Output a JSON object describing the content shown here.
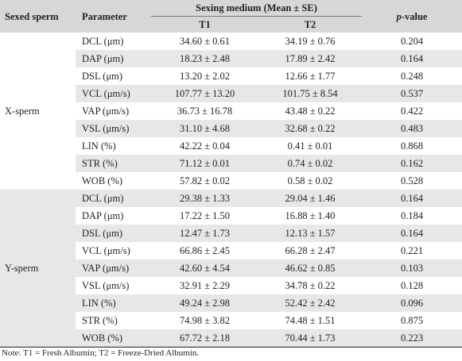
{
  "table": {
    "header": {
      "group_col": "Sexed sperm",
      "param_col": "Parameter",
      "medium_col": "Sexing medium (Mean ± SE)",
      "t1": "T1",
      "t2": "T2",
      "p_italic": "p",
      "p_rest": "-value"
    },
    "groups": [
      {
        "label": "X-sperm",
        "rows": [
          {
            "param": "DCL (μm)",
            "t1": "34.60 ± 0.61",
            "t2": "34.19 ± 0.76",
            "p": "0.204"
          },
          {
            "param": "DAP (μm)",
            "t1": "18.23 ± 2.48",
            "t2": "17.89 ± 2.42",
            "p": "0.164"
          },
          {
            "param": "DSL (μm)",
            "t1": "13.20 ± 2.02",
            "t2": "12.66 ± 1.77",
            "p": "0.248"
          },
          {
            "param": "VCL (μm/s)",
            "t1": "107.77 ± 13.20",
            "t2": "101.75 ± 8.54",
            "p": "0.537"
          },
          {
            "param": "VAP (μm/s)",
            "t1": "36.73 ± 16.78",
            "t2": "43.48 ± 0.22",
            "p": "0.422"
          },
          {
            "param": "VSL (μm/s)",
            "t1": "31.10 ± 4.68",
            "t2": "32.68 ± 0.22",
            "p": "0.483"
          },
          {
            "param": "LIN (%)",
            "t1": "42.22 ± 0.04",
            "t2": "0.41 ± 0.01",
            "p": "0.868"
          },
          {
            "param": "STR (%)",
            "t1": "71.12 ± 0.01",
            "t2": "0.74 ± 0.02",
            "p": "0.162"
          },
          {
            "param": "WOB (%)",
            "t1": "57.82 ± 0.02",
            "t2": "0.58 ± 0.02",
            "p": "0.528"
          }
        ]
      },
      {
        "label": "Y-sperm",
        "rows": [
          {
            "param": "DCL (μm)",
            "t1": "29.38 ± 1.33",
            "t2": "29.04 ± 1.46",
            "p": "0.164"
          },
          {
            "param": "DAP (μm)",
            "t1": "17.22 ± 1.50",
            "t2": "16.88 ± 1.40",
            "p": "0.184"
          },
          {
            "param": "DSL (μm)",
            "t1": "12.47 ± 1.73",
            "t2": "12.13 ± 1.57",
            "p": "0.164"
          },
          {
            "param": "VCL (μm/s)",
            "t1": "66.86 ± 2.45",
            "t2": "66.28 ± 2.47",
            "p": "0.221"
          },
          {
            "param": "VAP (μm/s)",
            "t1": "42.60 ± 4.54",
            "t2": "46.62 ± 0.85",
            "p": "0.103"
          },
          {
            "param": "VSL (μm/s)",
            "t1": "32.91 ± 2.29",
            "t2": "34.78 ± 0.22",
            "p": "0.128"
          },
          {
            "param": "LIN (%)",
            "t1": "49.24 ± 2.98",
            "t2": "52.42 ± 2.42",
            "p": "0.096"
          },
          {
            "param": "STR (%)",
            "t1": "74.98 ± 3.82",
            "t2": "74.48 ± 1.51",
            "p": "0.875"
          },
          {
            "param": "WOB (%)",
            "t1": "67.72 ± 2.18",
            "t2": "70.44 ± 1.73",
            "p": "0.223"
          }
        ]
      }
    ]
  },
  "note": "Note: T1 = Fresh Albumin; T2 = Freeze-Dried Albumin.",
  "colors": {
    "header_bg": "#d6d7d9",
    "stripe_bg": "#e6e7e8",
    "text": "#231f20"
  }
}
